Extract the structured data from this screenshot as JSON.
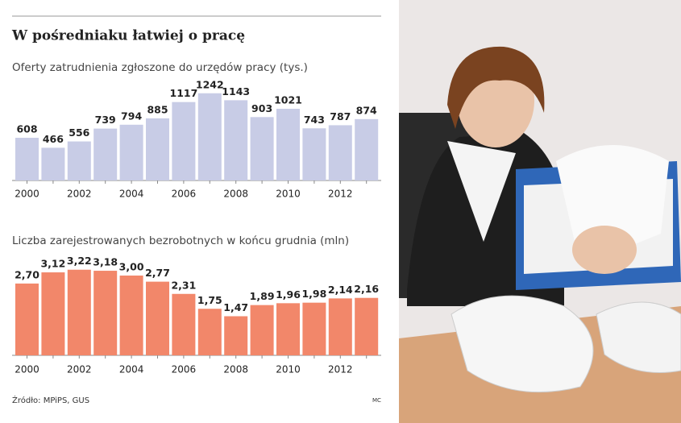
{
  "title": "W pośredniaku łatwiej o pracę",
  "source": "Źródło: MPiPS, GUS",
  "credit": "MC",
  "chart_data": [
    {
      "type": "bar",
      "title": "Oferty zatrudnienia zgłoszone do urzędów pracy (tys.)",
      "categories": [
        "2000",
        null,
        "2002",
        null,
        "2004",
        null,
        "2006",
        null,
        "2008",
        null,
        "2010",
        null,
        "2012",
        null
      ],
      "values": [
        608,
        466,
        556,
        739,
        794,
        885,
        1117,
        1242,
        1143,
        903,
        1021,
        743,
        787,
        874
      ],
      "color": "#c8cce6",
      "ylim": [
        0,
        1400
      ]
    },
    {
      "type": "bar",
      "title": "Liczba zarejestrowanych bezrobotnych w końcu grudnia (mln)",
      "categories": [
        "2000",
        null,
        "2002",
        null,
        "2004",
        null,
        "2006",
        null,
        "2008",
        null,
        "2010",
        null,
        "2012",
        null
      ],
      "values": [
        2.7,
        3.12,
        3.22,
        3.18,
        3.0,
        2.77,
        2.31,
        1.75,
        1.47,
        1.89,
        1.96,
        1.98,
        2.14,
        2.16
      ],
      "value_labels": [
        "2,70",
        "3,12",
        "3,22",
        "3,18",
        "3,00",
        "2,77",
        "2,31",
        "1,75",
        "1,47",
        "1,89",
        "1,96",
        "1,98",
        "2,14",
        "2,16"
      ],
      "color": "#f2876a",
      "ylim": [
        0,
        4
      ]
    }
  ]
}
